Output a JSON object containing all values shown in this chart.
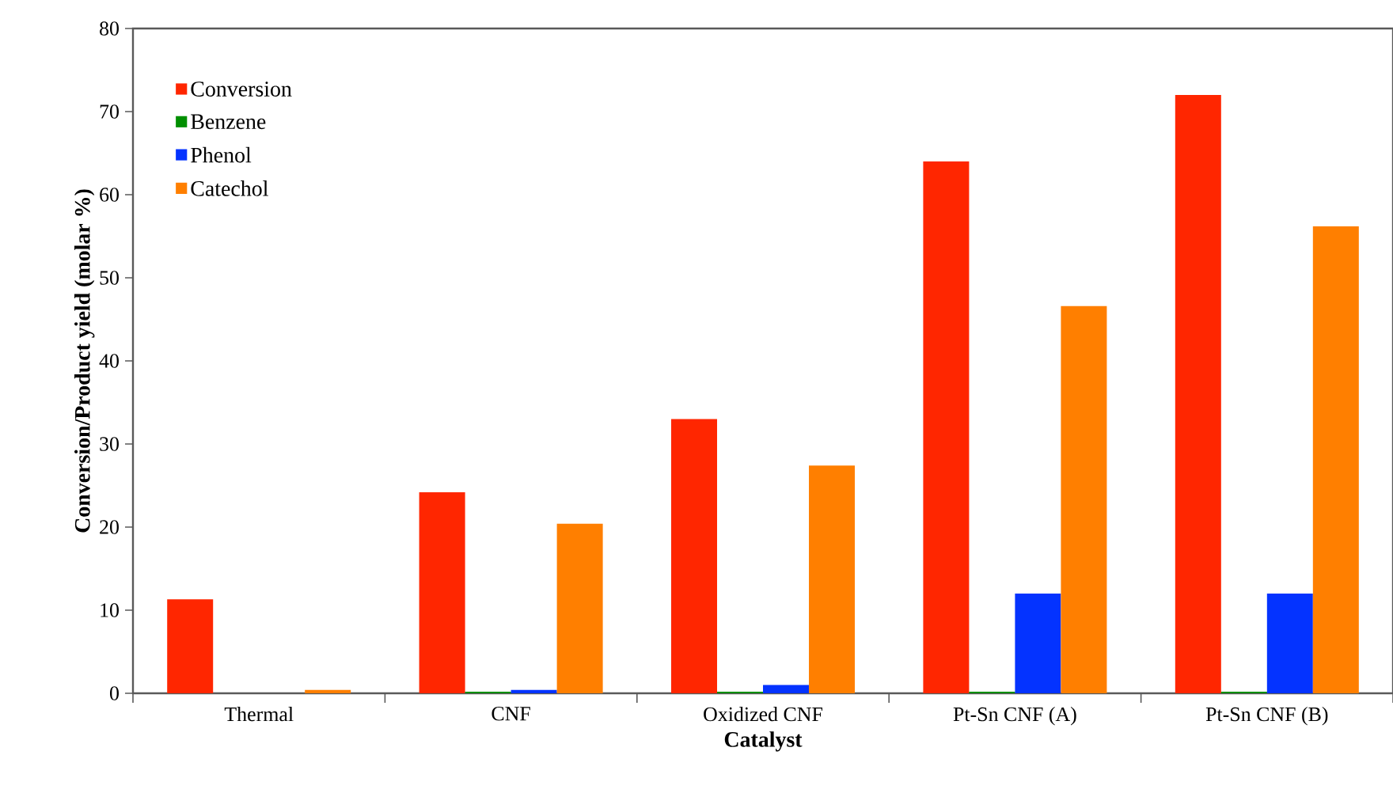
{
  "chart_data": {
    "type": "bar",
    "xlabel": "Catalyst",
    "ylabel": "Conversion/Product yield (molar %)",
    "categories": [
      "Thermal",
      "CNF",
      "Oxidized CNF",
      "Pt-Sn CNF (A)",
      "Pt-Sn CNF (B)"
    ],
    "series": [
      {
        "name": "Conversion",
        "color": "#ff2600",
        "values": [
          11.3,
          24.2,
          33,
          64,
          72
        ]
      },
      {
        "name": "Benzene",
        "color": "#008f00",
        "values": [
          0,
          0.2,
          0.2,
          0.2,
          0.2
        ]
      },
      {
        "name": "Phenol",
        "color": "#0433ff",
        "values": [
          0,
          0.4,
          1.0,
          12,
          12
        ]
      },
      {
        "name": "Catechol",
        "color": "#ff7f00",
        "values": [
          0.4,
          20.4,
          27.4,
          46.6,
          56.2
        ]
      }
    ],
    "ylim": [
      0,
      80
    ],
    "yticks": [
      0,
      10,
      20,
      30,
      40,
      50,
      60,
      70,
      80
    ],
    "grid": false,
    "legend": "top left"
  }
}
